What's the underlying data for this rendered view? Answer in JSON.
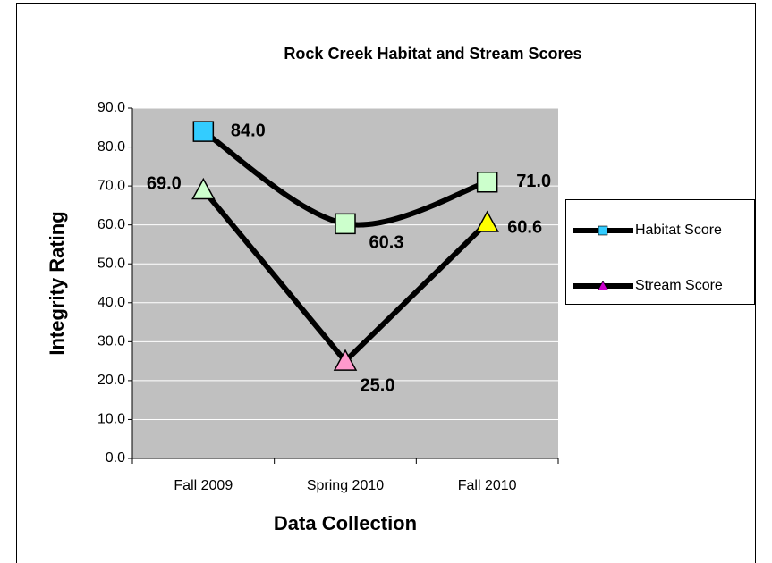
{
  "chart_data": {
    "type": "line",
    "title": "Rock Creek Habitat and Stream Scores",
    "x_label": "Data Collection",
    "y_label": "Integrity Rating",
    "categories": [
      "Fall 2009",
      "Spring 2010",
      "Fall 2010"
    ],
    "series": [
      {
        "name": "Habitat Score",
        "color": "#000000",
        "marker": "square",
        "smooth": true,
        "legend_marker_color": "#33ccff",
        "point_colors": [
          "#33ccff",
          "#ccffcc",
          "#ccffcc"
        ],
        "values": [
          84.0,
          60.3,
          71.0
        ],
        "value_labels": [
          "84.0",
          "60.3",
          "71.0"
        ]
      },
      {
        "name": "Stream Score",
        "color": "#000000",
        "marker": "triangle",
        "smooth": false,
        "legend_marker_color": "#cc00cc",
        "point_colors": [
          "#ccffcc",
          "#ff99cc",
          "#ffff00"
        ],
        "values": [
          69.0,
          25.0,
          60.6
        ],
        "value_labels": [
          "69.0",
          "25.0",
          "60.6"
        ]
      }
    ],
    "ylim": [
      0,
      90
    ],
    "yticks": [
      {
        "value": 0,
        "label": "0.0"
      },
      {
        "value": 10,
        "label": "10.0"
      },
      {
        "value": 20,
        "label": "20.0"
      },
      {
        "value": 30,
        "label": "30.0"
      },
      {
        "value": 40,
        "label": "40.0"
      },
      {
        "value": 50,
        "label": "50.0"
      },
      {
        "value": 60,
        "label": "60.0"
      },
      {
        "value": 70,
        "label": "70.0"
      },
      {
        "value": 80,
        "label": "80.0"
      },
      {
        "value": 90,
        "label": "90.0"
      }
    ],
    "grid": true,
    "plot_background": "#c0c0c0",
    "legend": "right"
  }
}
